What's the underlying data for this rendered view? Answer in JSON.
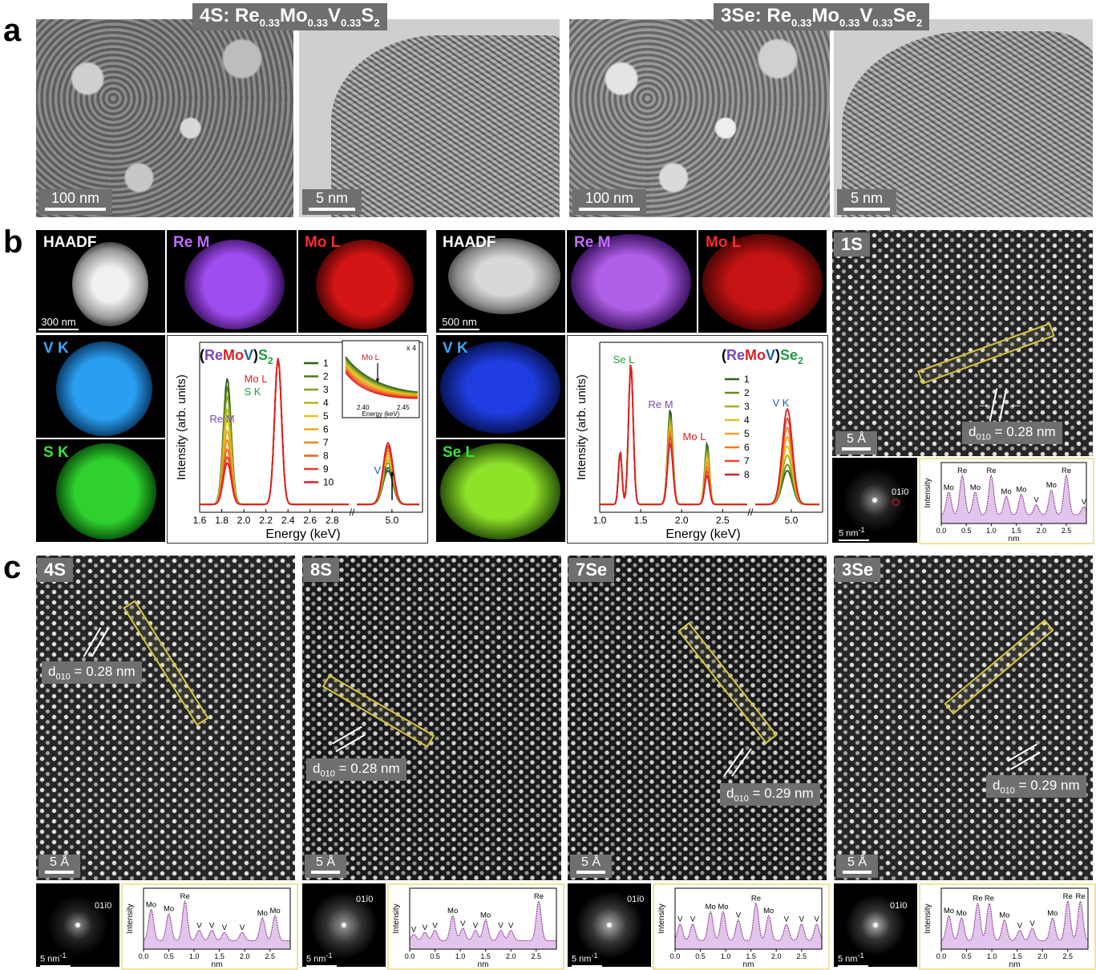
{
  "panels": {
    "a": "a",
    "b": "b",
    "c": "c"
  },
  "row_a": {
    "left_title": {
      "base": "4S: Re",
      "s1": "0.33",
      "m": "Mo",
      "s2": "0.33",
      "v": "V",
      "s3": "0.33",
      "x": "S",
      "s4": "2"
    },
    "right_title": {
      "base": "3Se: Re",
      "s1": "0.33",
      "m": "Mo",
      "s2": "0.33",
      "v": "V",
      "s3": "0.33",
      "x": "Se",
      "s4": "2"
    },
    "scale_sem": "100 nm",
    "scale_tem": "5 nm"
  },
  "row_b": {
    "haadf": "HAADF",
    "re_m": "Re M",
    "mo_l": "Mo L",
    "v_k": "V K",
    "s_k": "S K",
    "se_l": "Se L",
    "scale_left": "300 nm",
    "scale_right": "500 nm",
    "stem_1s": "1S",
    "scale_angstrom": "5 Å",
    "d_label": {
      "d": "d",
      "sub": "010",
      "rest": " = 0.28 nm"
    },
    "fft_spot": "01ī0",
    "fft_scale": "5 nm",
    "fft_scale_sup": "-1"
  },
  "row_c": {
    "tiles": [
      {
        "tag": "4S",
        "d_rest": " = 0.28 nm"
      },
      {
        "tag": "8S",
        "d_rest": " = 0.28 nm"
      },
      {
        "tag": "7Se",
        "d_rest": " = 0.29 nm"
      },
      {
        "tag": "3Se",
        "d_rest": " = 0.29 nm"
      }
    ],
    "scale": "5 Å"
  },
  "profile_axes": {
    "ylabel": "Intensity",
    "xlabel": "nm"
  },
  "colors": {
    "re": "#7b48b5",
    "mo": "#d81f26",
    "v": "#1d5fa7",
    "s": "#1f9b3e",
    "se": "#1f9b3e",
    "roi": "#d4c43a",
    "profile_fill": "#e3c4ec",
    "profile_line": "#7d2d7f"
  },
  "chart_data": [
    {
      "type": "line",
      "id": "eds_S2",
      "title_parts": [
        "(",
        "Re",
        "Mo",
        "V",
        ")",
        "S",
        "2"
      ],
      "xlabel": "Energy (keV)",
      "ylabel": "Intensity (arb. units)",
      "x_ticks_left": [
        "1.6",
        "1.8",
        "2.0",
        "2.2",
        "2.4",
        "2.6",
        "2.8"
      ],
      "x_ticks_right": [
        "5.0"
      ],
      "peak_labels": [
        "Re M",
        "Mo L",
        "S K",
        "V K"
      ],
      "legend": [
        "1",
        "2",
        "3",
        "4",
        "5",
        "6",
        "7",
        "8",
        "9",
        "10"
      ],
      "legend_colors": [
        "#2f5d1c",
        "#4f7b1f",
        "#84a21d",
        "#b7b51d",
        "#e0c41c",
        "#efa81b",
        "#f1861c",
        "#ee6221",
        "#e63c25",
        "#d81f26"
      ],
      "re_m_heights": [
        0.82,
        0.76,
        0.7,
        0.62,
        0.55,
        0.48,
        0.42,
        0.36,
        0.31,
        0.27
      ],
      "v_k_heights": [
        0.22,
        0.24,
        0.27,
        0.29,
        0.31,
        0.33,
        0.35,
        0.37,
        0.38,
        0.4
      ],
      "inset": {
        "label": "Mo L",
        "scale": "x 4",
        "xlabel": "Energy (keV)",
        "ticks": [
          "2.40",
          "2.45"
        ]
      }
    },
    {
      "type": "line",
      "id": "eds_Se2",
      "title_parts": [
        "(",
        "Re",
        "Mo",
        "V",
        ")",
        "Se",
        "2"
      ],
      "xlabel": "Energy (keV)",
      "ylabel": "Intensity (arb. units)",
      "x_ticks_left": [
        "1.0",
        "1.5",
        "2.0",
        "2.5"
      ],
      "x_ticks_right": [
        "5.0"
      ],
      "peak_labels": [
        "Se L",
        "Re M",
        "Mo L",
        "V K"
      ],
      "legend": [
        "1",
        "2",
        "3",
        "4",
        "5",
        "6",
        "7",
        "8"
      ],
      "legend_colors": [
        "#2f5d1c",
        "#6a8d1e",
        "#a3ae1d",
        "#dcc21c",
        "#f0a21b",
        "#f07a1e",
        "#e8492a",
        "#d81f26"
      ],
      "re_m_heights": [
        0.62,
        0.58,
        0.55,
        0.52,
        0.5,
        0.47,
        0.44,
        0.4
      ],
      "v_k_heights": [
        0.22,
        0.26,
        0.32,
        0.38,
        0.44,
        0.5,
        0.56,
        0.62
      ]
    },
    {
      "type": "area",
      "id": "profile_1S",
      "x_ticks": [
        "0.0",
        "0.5",
        "1.0",
        "1.5",
        "2.0",
        "2.5"
      ],
      "labels": [
        {
          "t": "Mo",
          "x": 0.15
        },
        {
          "t": "Re",
          "x": 0.42
        },
        {
          "t": "Mo",
          "x": 0.68
        },
        {
          "t": "Re",
          "x": 1.0
        },
        {
          "t": "Mo",
          "x": 1.3
        },
        {
          "t": "Mo",
          "x": 1.6
        },
        {
          "t": "V",
          "x": 1.9
        },
        {
          "t": "Mo",
          "x": 2.2
        },
        {
          "t": "Re",
          "x": 2.5
        },
        {
          "t": "V",
          "x": 2.85
        }
      ],
      "peaks": [
        {
          "x": 0.15,
          "h": 0.55
        },
        {
          "x": 0.42,
          "h": 0.95
        },
        {
          "x": 0.68,
          "h": 0.55
        },
        {
          "x": 1.0,
          "h": 0.95
        },
        {
          "x": 1.3,
          "h": 0.45
        },
        {
          "x": 1.6,
          "h": 0.5
        },
        {
          "x": 1.9,
          "h": 0.25
        },
        {
          "x": 2.2,
          "h": 0.6
        },
        {
          "x": 2.5,
          "h": 0.95
        },
        {
          "x": 2.85,
          "h": 0.2
        }
      ]
    },
    {
      "type": "area",
      "id": "profile_4S",
      "x_ticks": [
        "0.0",
        "0.5",
        "1.0",
        "1.5",
        "2.0",
        "2.5"
      ],
      "labels": [
        {
          "t": "Mo",
          "x": 0.15
        },
        {
          "t": "Mo",
          "x": 0.5
        },
        {
          "t": "Re",
          "x": 0.82
        },
        {
          "t": "V",
          "x": 1.1
        },
        {
          "t": "V",
          "x": 1.35
        },
        {
          "t": "V",
          "x": 1.6
        },
        {
          "t": "V",
          "x": 1.95
        },
        {
          "t": "Mo",
          "x": 2.35
        },
        {
          "t": "Mo",
          "x": 2.6
        }
      ],
      "peaks": [
        {
          "x": 0.15,
          "h": 0.75
        },
        {
          "x": 0.5,
          "h": 0.65
        },
        {
          "x": 0.82,
          "h": 0.95
        },
        {
          "x": 1.1,
          "h": 0.25
        },
        {
          "x": 1.35,
          "h": 0.25
        },
        {
          "x": 1.6,
          "h": 0.2
        },
        {
          "x": 1.95,
          "h": 0.2
        },
        {
          "x": 2.35,
          "h": 0.55
        },
        {
          "x": 2.6,
          "h": 0.6
        }
      ]
    },
    {
      "type": "area",
      "id": "profile_8S",
      "x_ticks": [
        "0.0",
        "0.5",
        "1.0",
        "1.5",
        "2.0",
        "2.5"
      ],
      "labels": [
        {
          "t": "V",
          "x": 0.08
        },
        {
          "t": "V",
          "x": 0.3
        },
        {
          "t": "V",
          "x": 0.5
        },
        {
          "t": "Mo",
          "x": 0.85
        },
        {
          "t": "V",
          "x": 1.05
        },
        {
          "t": "V",
          "x": 1.3
        },
        {
          "t": "Mo",
          "x": 1.5
        },
        {
          "t": "V",
          "x": 1.8
        },
        {
          "t": "V",
          "x": 2.0
        },
        {
          "t": "Re",
          "x": 2.55
        }
      ],
      "peaks": [
        {
          "x": 0.08,
          "h": 0.15
        },
        {
          "x": 0.3,
          "h": 0.2
        },
        {
          "x": 0.5,
          "h": 0.25
        },
        {
          "x": 0.85,
          "h": 0.6
        },
        {
          "x": 1.05,
          "h": 0.3
        },
        {
          "x": 1.3,
          "h": 0.25
        },
        {
          "x": 1.5,
          "h": 0.5
        },
        {
          "x": 1.8,
          "h": 0.25
        },
        {
          "x": 2.0,
          "h": 0.25
        },
        {
          "x": 2.55,
          "h": 0.95
        }
      ]
    },
    {
      "type": "area",
      "id": "profile_7Se",
      "x_ticks": [
        "0.0",
        "0.5",
        "1.0",
        "1.5",
        "2.0",
        "2.5"
      ],
      "labels": [
        {
          "t": "V",
          "x": 0.1
        },
        {
          "t": "V",
          "x": 0.35
        },
        {
          "t": "Mo",
          "x": 0.7
        },
        {
          "t": "Mo",
          "x": 0.95
        },
        {
          "t": "V",
          "x": 1.25
        },
        {
          "t": "Re",
          "x": 1.6
        },
        {
          "t": "Mo",
          "x": 1.85
        },
        {
          "t": "V",
          "x": 2.2
        },
        {
          "t": "V",
          "x": 2.5
        },
        {
          "t": "V",
          "x": 2.8
        }
      ],
      "peaks": [
        {
          "x": 0.1,
          "h": 0.4
        },
        {
          "x": 0.35,
          "h": 0.4
        },
        {
          "x": 0.7,
          "h": 0.7
        },
        {
          "x": 0.95,
          "h": 0.7
        },
        {
          "x": 1.25,
          "h": 0.5
        },
        {
          "x": 1.6,
          "h": 0.9
        },
        {
          "x": 1.85,
          "h": 0.6
        },
        {
          "x": 2.2,
          "h": 0.4
        },
        {
          "x": 2.5,
          "h": 0.4
        },
        {
          "x": 2.8,
          "h": 0.4
        }
      ]
    },
    {
      "type": "area",
      "id": "profile_3Se",
      "x_ticks": [
        "0.0",
        "0.5",
        "1.0",
        "1.5",
        "2.0",
        "2.5"
      ],
      "labels": [
        {
          "t": "Mo",
          "x": 0.15
        },
        {
          "t": "Mo",
          "x": 0.4
        },
        {
          "t": "Re",
          "x": 0.72
        },
        {
          "t": "Re",
          "x": 0.95
        },
        {
          "t": "Mo",
          "x": 1.25
        },
        {
          "t": "V",
          "x": 1.55
        },
        {
          "t": "V",
          "x": 1.8
        },
        {
          "t": "Mo",
          "x": 2.2
        },
        {
          "t": "Re",
          "x": 2.5
        },
        {
          "t": "Re",
          "x": 2.75
        }
      ],
      "peaks": [
        {
          "x": 0.15,
          "h": 0.6
        },
        {
          "x": 0.4,
          "h": 0.55
        },
        {
          "x": 0.72,
          "h": 0.9
        },
        {
          "x": 0.95,
          "h": 0.9
        },
        {
          "x": 1.25,
          "h": 0.5
        },
        {
          "x": 1.55,
          "h": 0.25
        },
        {
          "x": 1.8,
          "h": 0.3
        },
        {
          "x": 2.2,
          "h": 0.55
        },
        {
          "x": 2.5,
          "h": 0.95
        },
        {
          "x": 2.75,
          "h": 0.95
        }
      ]
    }
  ]
}
